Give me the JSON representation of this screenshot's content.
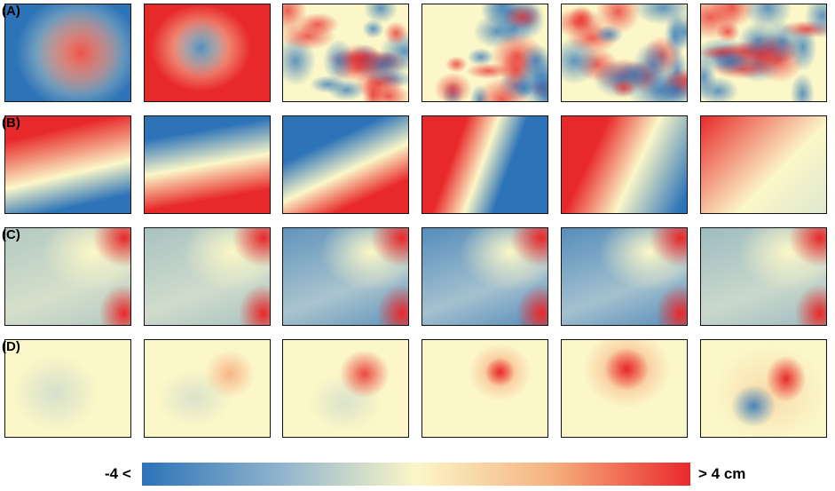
{
  "panel_labels": [
    "(A)",
    "(B)",
    "(C)",
    "(D)"
  ],
  "colorbar": {
    "min_label": "-4 <",
    "max_label": "> 4 cm"
  }
}
